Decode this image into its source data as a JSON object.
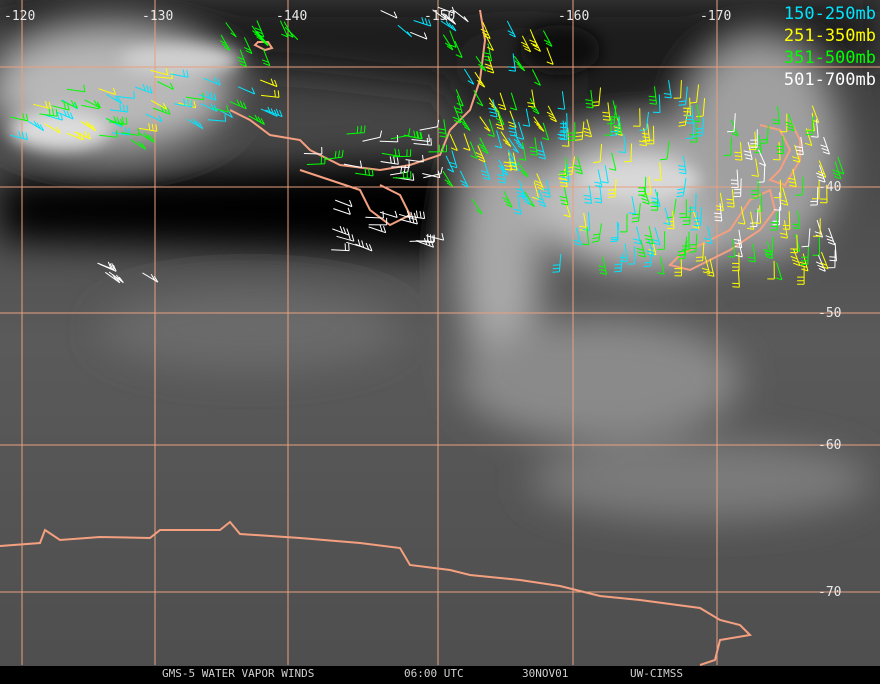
{
  "header": {
    "legend": [
      {
        "label": "150-250mb",
        "color": "#00e5ff"
      },
      {
        "label": "251-350mb",
        "color": "#ffff00"
      },
      {
        "label": "351-500mb",
        "color": "#00ff00"
      },
      {
        "label": "501-700mb",
        "color": "#ffffff"
      }
    ]
  },
  "map": {
    "longitude_labels": [
      "-120",
      "-130",
      "-140",
      "-150",
      "-160",
      "-170"
    ],
    "latitude_labels": [
      "-40",
      "-50",
      "-60",
      "-70"
    ]
  },
  "footer": {
    "title": "GMS-5 WATER VAPOR WINDS",
    "time": "06:00 UTC",
    "date": "30NOV01",
    "source": "UW-CIMSS"
  }
}
